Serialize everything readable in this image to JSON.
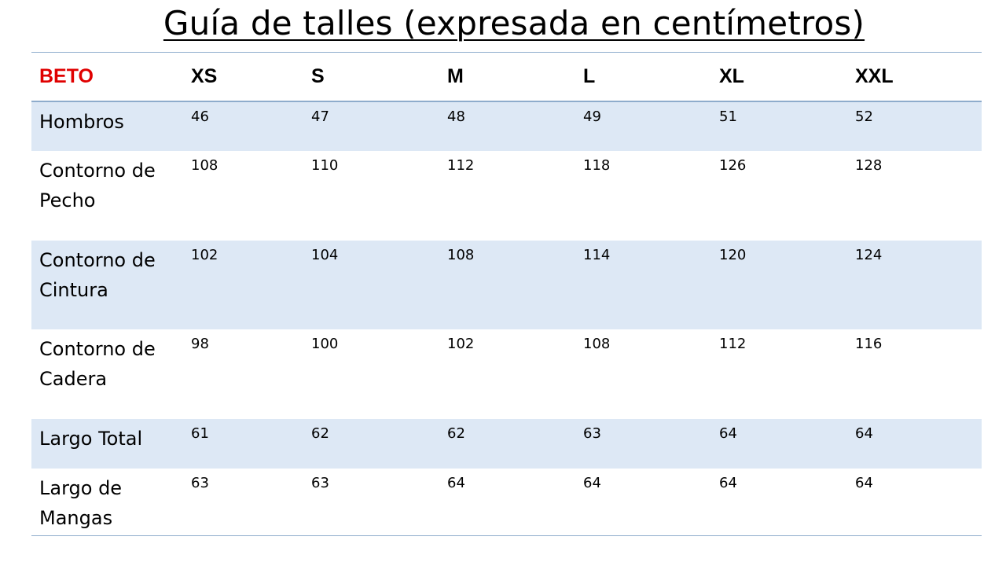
{
  "title": "Guía de talles (expresada en centímetros)",
  "table": {
    "brand": "BETO",
    "brand_color": "#e00000",
    "row_shading_color": "#dde8f5",
    "sizes": [
      "XS",
      "S",
      "M",
      "L",
      "XL",
      "XXL"
    ],
    "rows": [
      {
        "label": "Hombros",
        "values": [
          "46",
          "47",
          "48",
          "49",
          "51",
          "52"
        ]
      },
      {
        "label": "Contorno de Pecho",
        "values": [
          "108",
          "110",
          "112",
          "118",
          "126",
          "128"
        ]
      },
      {
        "label": "Contorno de Cintura",
        "values": [
          "102",
          "104",
          "108",
          "114",
          "120",
          "124"
        ]
      },
      {
        "label": "Contorno de Cadera",
        "values": [
          "98",
          "100",
          "102",
          "108",
          "112",
          "116"
        ]
      },
      {
        "label": "Largo Total",
        "values": [
          "61",
          "62",
          "62",
          "63",
          "64",
          "64"
        ]
      },
      {
        "label": "Largo de Mangas",
        "values": [
          "63",
          "63",
          "64",
          "64",
          "64",
          "64"
        ]
      }
    ]
  }
}
